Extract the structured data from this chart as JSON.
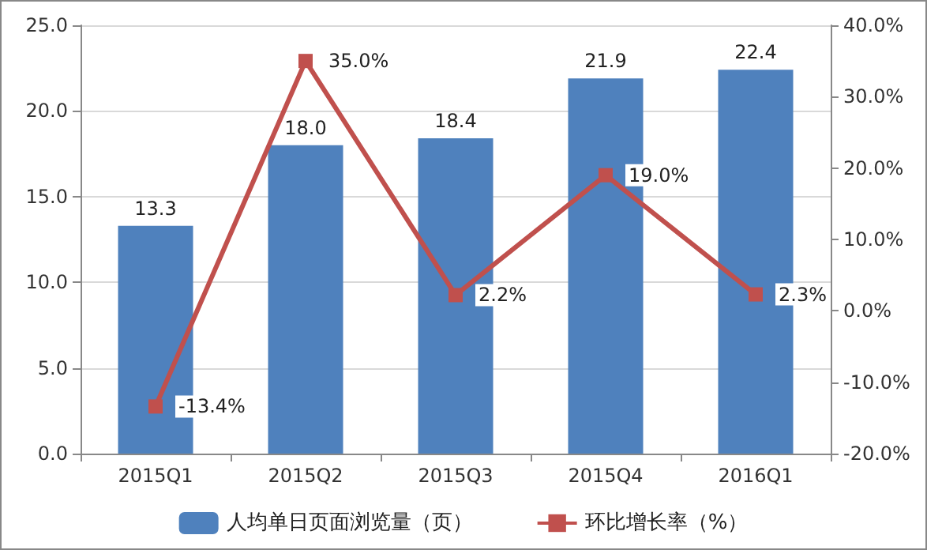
{
  "chart_data": {
    "type": "bar",
    "categories": [
      "2015Q1",
      "2015Q2",
      "2015Q3",
      "2015Q4",
      "2016Q1"
    ],
    "series": [
      {
        "name": "人均单日页面浏览量（页）",
        "color": "#4f81bd",
        "values": [
          13.3,
          18.0,
          18.4,
          21.9,
          22.4
        ],
        "value_labels": [
          "13.3",
          "18.0",
          "18.4",
          "21.9",
          "22.4"
        ]
      },
      {
        "name": "环比增长率（%）",
        "type": "line",
        "axis": "y2",
        "color": "#c0504d",
        "marker": "square",
        "values": [
          -13.4,
          35.0,
          2.2,
          19.0,
          2.3
        ],
        "value_labels": [
          "-13.4%",
          "35.0%",
          "2.2%",
          "19.0%",
          "2.3%"
        ]
      }
    ],
    "ylim": [
      0,
      25
    ],
    "yticks": [
      {
        "value": 0,
        "label": "0.0"
      },
      {
        "value": 5,
        "label": "5.0"
      },
      {
        "value": 10,
        "label": "10.0"
      },
      {
        "value": 15,
        "label": "15.0"
      },
      {
        "value": 20,
        "label": "20.0"
      },
      {
        "value": 25,
        "label": "25.0"
      }
    ],
    "y2lim": [
      -20,
      40
    ],
    "y2ticks": [
      {
        "value": -20,
        "label": "-20.0%"
      },
      {
        "value": -10,
        "label": "-10.0%"
      },
      {
        "value": 0,
        "label": "0.0%"
      },
      {
        "value": 10,
        "label": "10.0%"
      },
      {
        "value": 20,
        "label": "20.0%"
      },
      {
        "value": 30,
        "label": "30.0%"
      },
      {
        "value": 40,
        "label": "40.0%"
      }
    ],
    "grid": "y",
    "legend": "bottom"
  }
}
